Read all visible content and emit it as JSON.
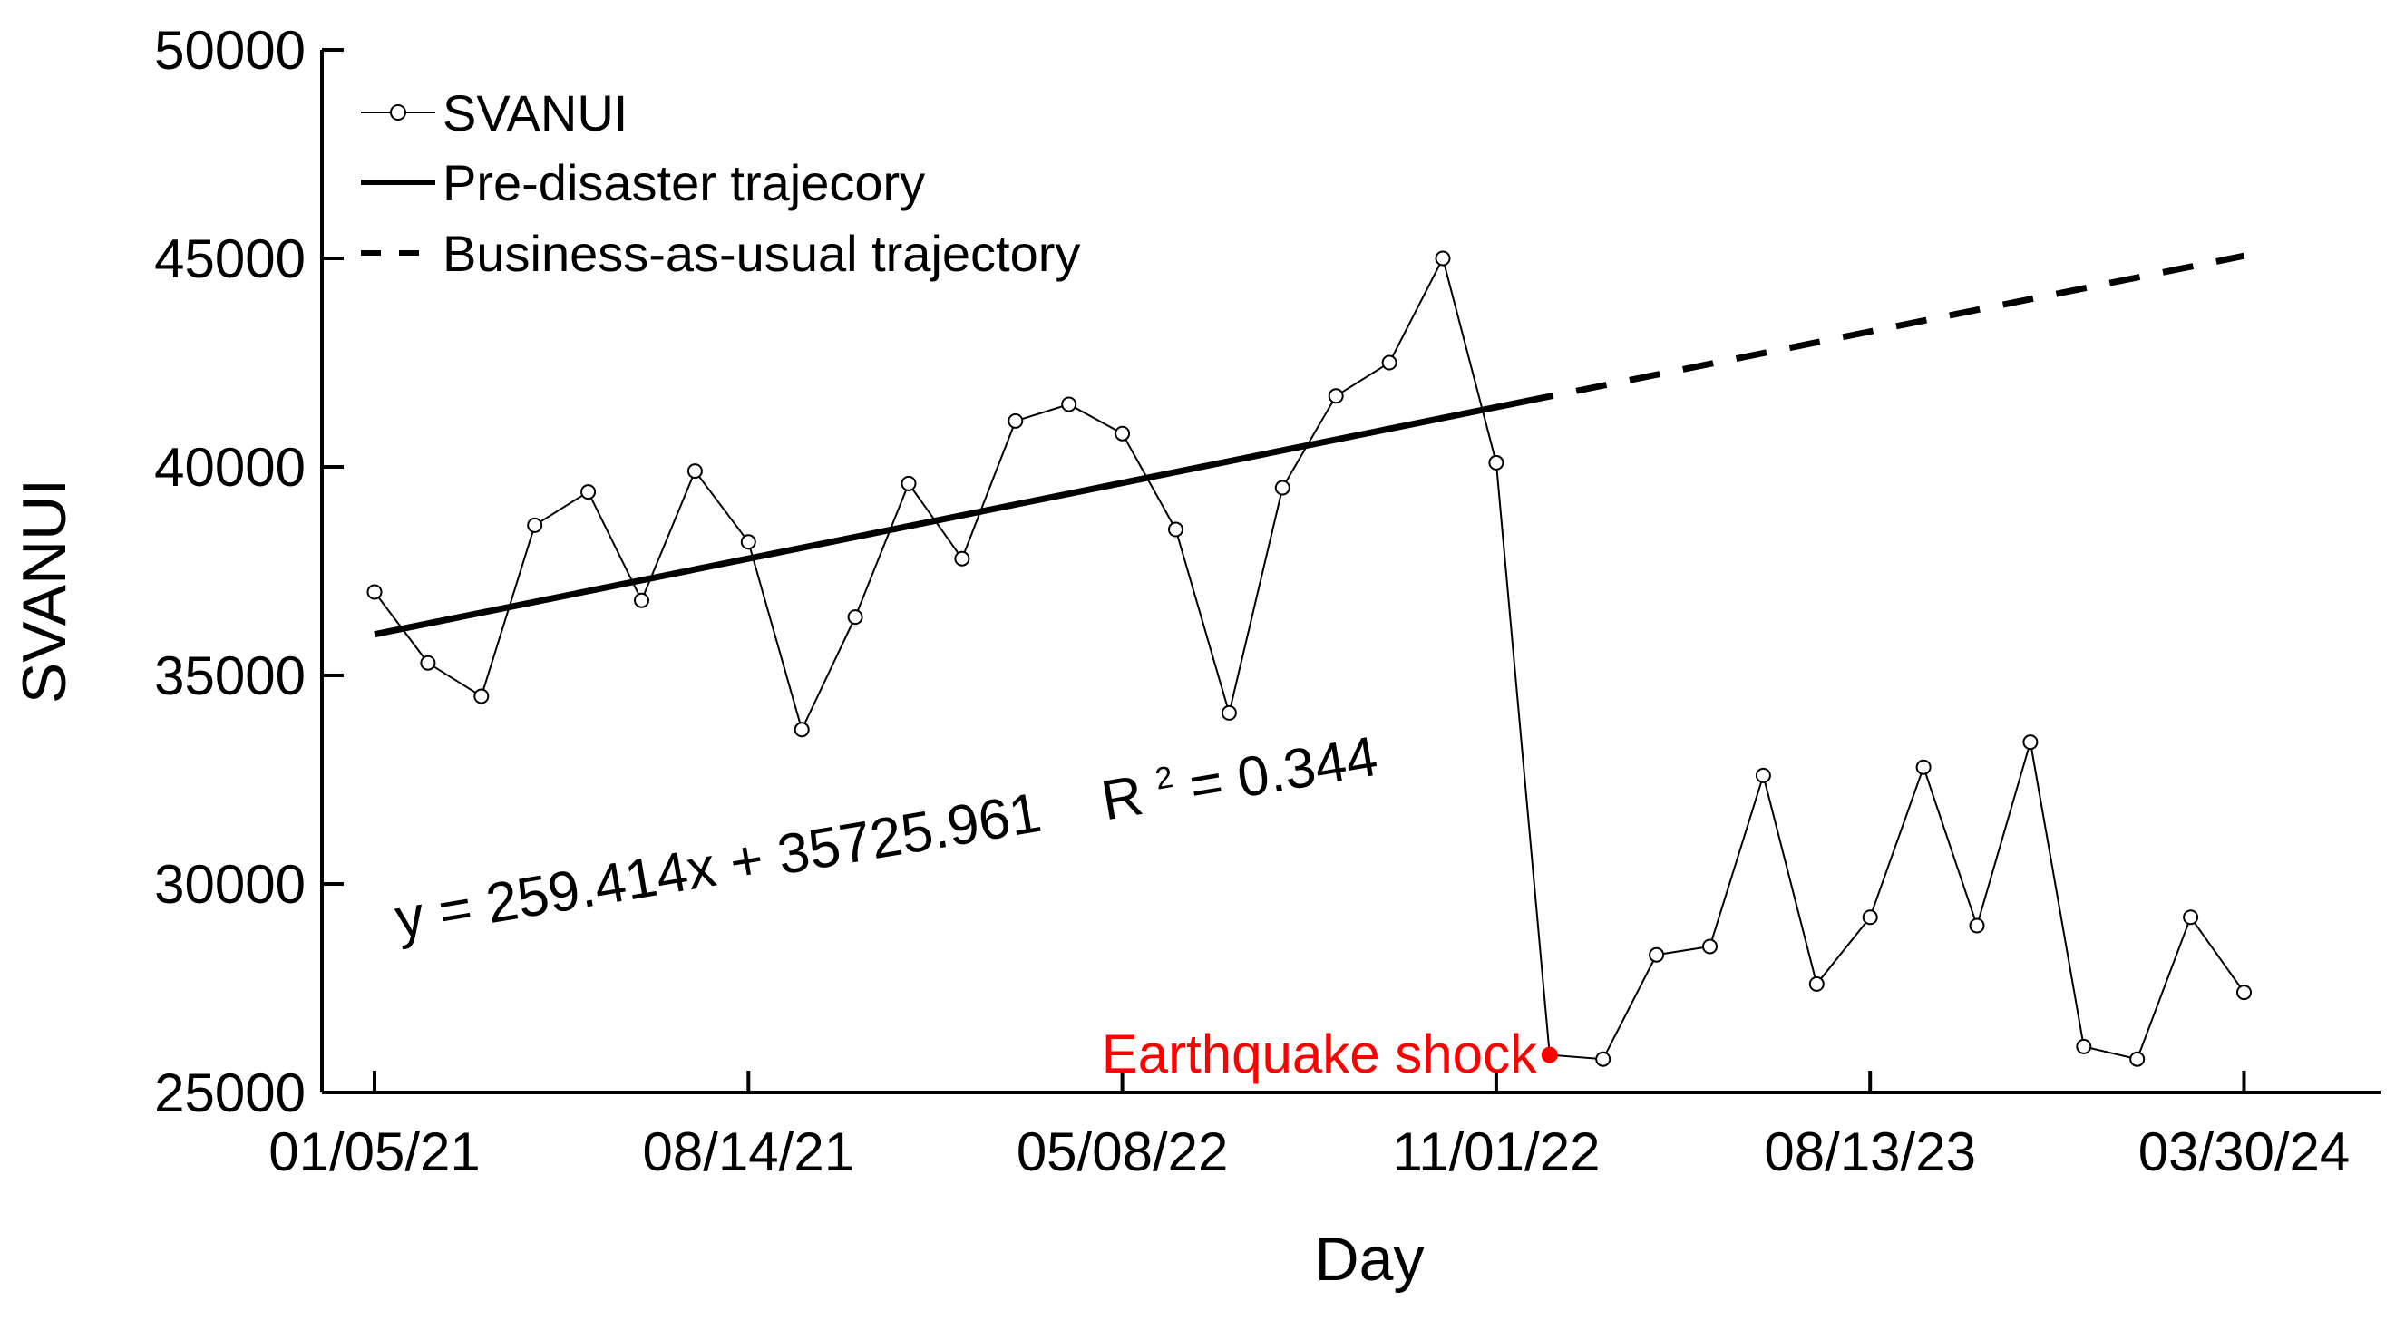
{
  "chart_data": {
    "type": "line",
    "xlabel": "Day",
    "ylabel": "SVANUI",
    "ylim": [
      25000,
      50000
    ],
    "yticks": [
      25000,
      30000,
      35000,
      40000,
      45000,
      50000
    ],
    "ytick_labels": [
      "25000",
      "30000",
      "35000",
      "40000",
      "45000",
      "50000"
    ],
    "xtick_labels": [
      "01/05/21",
      "08/14/21",
      "05/08/22",
      "11/01/22",
      "08/13/23",
      "03/30/24"
    ],
    "xtick_index": [
      0,
      7,
      14,
      21,
      28,
      35
    ],
    "grid": false,
    "legend_position": "top-left",
    "legend": [
      {
        "label": "SVANUI",
        "style": "line-with-circle-markers"
      },
      {
        "label": "Pre-disaster trajecory",
        "style": "solid"
      },
      {
        "label": "Business-as-usual trajectory",
        "style": "dashed"
      }
    ],
    "series": [
      {
        "name": "SVANUI",
        "color": "#000000",
        "x_index": [
          0,
          1,
          2,
          3,
          4,
          5,
          6,
          7,
          8,
          9,
          10,
          11,
          12,
          13,
          14,
          15,
          16,
          17,
          18,
          19,
          20,
          21,
          22,
          23,
          24,
          25,
          26,
          27,
          28,
          29,
          30,
          31,
          32,
          33,
          34,
          35
        ],
        "values": [
          37000,
          35300,
          34500,
          38600,
          39400,
          36800,
          39900,
          38200,
          33700,
          36400,
          39600,
          37800,
          41100,
          41500,
          40800,
          38500,
          34100,
          39500,
          41700,
          42500,
          45000,
          40100,
          25900,
          25800,
          28300,
          28500,
          32600,
          27600,
          29200,
          32800,
          29000,
          33400,
          26100,
          25800,
          29200,
          27400
        ]
      },
      {
        "name": "Pre-disaster trajecory",
        "style": "solid",
        "x_index": [
          0,
          21.5
        ],
        "values": [
          35985,
          41562
        ]
      },
      {
        "name": "Business-as-usual trajectory",
        "style": "dashed",
        "x_index": [
          21.5,
          35
        ],
        "values": [
          41562,
          45060
        ]
      }
    ],
    "annotations": {
      "equation": "y = 259.414x + 35725.961",
      "r2_label": "R",
      "r2_sup": "2",
      "r2_value": " = 0.344",
      "event_label": "Earthquake shock",
      "event_index": 22,
      "event_color": "#ff0000"
    }
  }
}
